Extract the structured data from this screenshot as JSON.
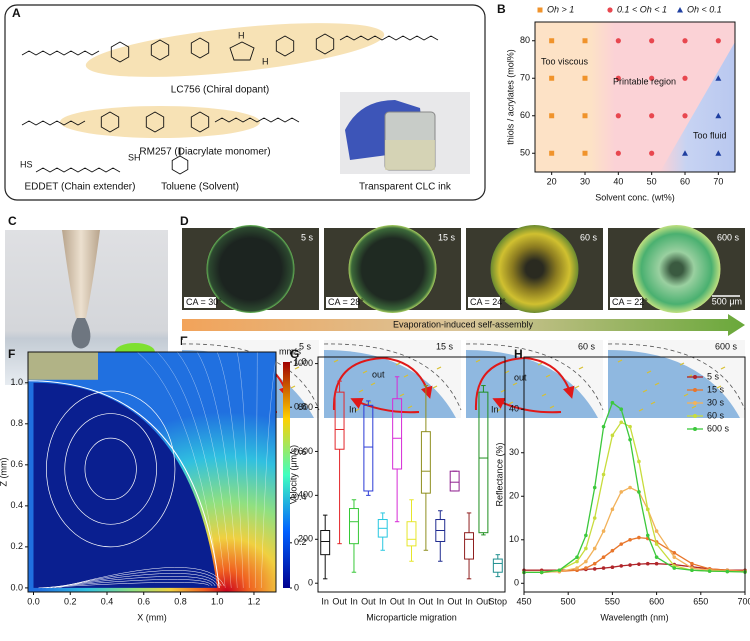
{
  "figure": {
    "labels": [
      "A",
      "C",
      "D",
      "E"
    ],
    "A": {
      "compounds": [
        "LC756 (Chiral dopant)",
        "RM257 (Diacrylate monomer)",
        "EDDET (Chain extender)",
        "Toluene (Solvent)",
        "Transparent CLC ink"
      ],
      "atoms": [
        "H",
        "H",
        "HS",
        "SH"
      ]
    },
    "D": {
      "times": [
        "5 s",
        "15 s",
        "60 s",
        "600 s"
      ],
      "angles": [
        "CA = 30°",
        "CA = 28°",
        "CA = 24°",
        "CA = 22°"
      ],
      "scale": "500 μm",
      "arrow": "Evaporation-induced self-assembly"
    },
    "E": {
      "times": [
        "5 s",
        "15 s",
        "60 s",
        "600 s"
      ],
      "flow": [
        "out",
        "In",
        "out",
        "In"
      ]
    }
  },
  "chart_data": [
    {
      "panel": "B",
      "type": "scatter",
      "xlabel": "Solvent conc. (wt%)",
      "ylabel": "thiols / acrylates (mol%)",
      "xlim": [
        15,
        75
      ],
      "ylim": [
        45,
        85
      ],
      "xticks": [
        20,
        30,
        40,
        50,
        60,
        70
      ],
      "yticks": [
        50,
        60,
        70,
        80
      ],
      "annotations": [
        "Too viscous",
        "Printable region",
        "Too fluid"
      ],
      "series": [
        {
          "name": "Oh > 1",
          "color": "#f0932b",
          "marker": "square",
          "x": [
            20,
            20,
            20,
            20,
            30,
            30,
            30,
            30
          ],
          "values": [
            80,
            70,
            60,
            50,
            80,
            70,
            60,
            50
          ]
        },
        {
          "name": "0.1 < Oh < 1",
          "color": "#e8474f",
          "marker": "circle",
          "x": [
            40,
            40,
            40,
            40,
            50,
            50,
            50,
            50,
            60,
            60,
            60,
            70
          ],
          "values": [
            80,
            70,
            60,
            50,
            80,
            70,
            60,
            50,
            80,
            70,
            60,
            80
          ]
        },
        {
          "name": "Oh < 0.1",
          "color": "#1f3fa0",
          "marker": "triangle",
          "x": [
            70,
            70,
            60,
            70
          ],
          "values": [
            70,
            60,
            50,
            50
          ]
        }
      ]
    },
    {
      "panel": "F",
      "type": "field",
      "xlabel": "X (mm)",
      "ylabel": "Z (mm)",
      "xlim": [
        -0.03,
        1.32
      ],
      "ylim": [
        -0.02,
        1.15
      ],
      "xticks": [
        {
          "value": 0,
          "label": "0.0"
        },
        0.2,
        0.4,
        0.6,
        0.8,
        {
          "value": 1,
          "label": "1.0"
        },
        1.2
      ],
      "yticks": [
        {
          "value": 0,
          "label": "0.0"
        },
        0.2,
        0.4,
        0.6,
        0.8,
        {
          "value": 1,
          "label": "1.0"
        }
      ],
      "colorbar": {
        "label": "mm/s",
        "lim": [
          0,
          1
        ],
        "ticks": [
          0,
          0.2,
          0.4,
          0.6,
          0.8,
          {
            "value": 1,
            "label": "1.0"
          }
        ]
      }
    },
    {
      "panel": "G",
      "type": "box",
      "xlabel": "Microparticle migration",
      "ylabel": "Velocity (μm/s)",
      "ylim": [
        -40,
        1030
      ],
      "yticks": [
        0,
        200,
        400,
        600,
        800,
        1000
      ],
      "categories": [
        "In",
        "Out",
        "In",
        "Out",
        "In",
        "Out",
        "In",
        "Out",
        "In",
        "Out",
        "In",
        "Out",
        "Stop"
      ],
      "boxes": [
        {
          "color": "#111111",
          "min": 20,
          "q1": 130,
          "median": 190,
          "q3": 240,
          "max": 310
        },
        {
          "color": "#e3262a",
          "min": 180,
          "q1": 610,
          "median": 700,
          "q3": 870,
          "max": 920
        },
        {
          "color": "#37c837",
          "min": 50,
          "q1": 180,
          "median": 280,
          "q3": 340,
          "max": 380
        },
        {
          "color": "#2b3bd6",
          "min": 400,
          "q1": 420,
          "median": 620,
          "q3": 810,
          "max": 830
        },
        {
          "color": "#28c8e0",
          "min": 150,
          "q1": 210,
          "median": 250,
          "q3": 290,
          "max": 320
        },
        {
          "color": "#d62bd6",
          "min": 280,
          "q1": 520,
          "median": 660,
          "q3": 840,
          "max": 940
        },
        {
          "color": "#e6e62b",
          "min": 100,
          "q1": 170,
          "median": 200,
          "q3": 280,
          "max": 380
        },
        {
          "color": "#8f8f1f",
          "min": 150,
          "q1": 410,
          "median": 510,
          "q3": 690,
          "max": 900
        },
        {
          "color": "#1f2b8f",
          "min": 100,
          "q1": 190,
          "median": 240,
          "q3": 290,
          "max": 330
        },
        {
          "color": "#8f1f8f",
          "min": 420,
          "q1": 420,
          "median": 460,
          "q3": 510,
          "max": 510
        },
        {
          "color": "#8f1f1f",
          "min": 20,
          "q1": 110,
          "median": 200,
          "q3": 230,
          "max": 320
        },
        {
          "color": "#1f8f1f",
          "min": 220,
          "q1": 230,
          "median": 570,
          "q3": 870,
          "max": 900
        },
        {
          "color": "#1f8f8f",
          "min": 30,
          "q1": 50,
          "median": 90,
          "q3": 110,
          "max": 130
        }
      ]
    },
    {
      "panel": "H",
      "type": "line",
      "xlabel": "Wavelength (nm)",
      "ylabel": "Reflectance (%)",
      "xlim": [
        450,
        700
      ],
      "ylim": [
        -2,
        52
      ],
      "xticks": [
        450,
        500,
        550,
        600,
        650,
        700
      ],
      "yticks": [
        0,
        10,
        20,
        30,
        40
      ],
      "x": [
        450,
        470,
        490,
        510,
        520,
        530,
        540,
        550,
        560,
        570,
        580,
        590,
        600,
        620,
        640,
        660,
        680,
        700
      ],
      "series": [
        {
          "name": "5 s",
          "color": "#b0252a",
          "values": [
            3,
            3,
            3,
            3,
            3.2,
            3.3,
            3.5,
            3.7,
            4,
            4.2,
            4.4,
            4.5,
            4.5,
            4.3,
            3.8,
            3.3,
            3,
            3
          ]
        },
        {
          "name": "15 s",
          "color": "#e8762b",
          "values": [
            2.5,
            2.5,
            2.7,
            3,
            3.5,
            4.5,
            6,
            7.5,
            9,
            10,
            10.5,
            10.3,
            9.5,
            7,
            4.5,
            3.3,
            3,
            2.8
          ]
        },
        {
          "name": "30 s",
          "color": "#f2b25a",
          "values": [
            2.5,
            2.5,
            2.7,
            3.5,
            5,
            8,
            12,
            17,
            21,
            22,
            21,
            17,
            12,
            6,
            3.5,
            3,
            2.8,
            2.7
          ]
        },
        {
          "name": "60 s",
          "color": "#c8dc3c",
          "values": [
            2.5,
            2.5,
            3,
            5,
            8,
            15,
            25,
            34,
            37,
            36,
            28,
            17,
            9,
            4,
            3,
            2.8,
            2.7,
            2.6
          ]
        },
        {
          "name": "600 s",
          "color": "#3cc83c",
          "values": [
            2.5,
            2.5,
            3,
            6,
            11,
            22,
            36,
            41.5,
            40,
            33,
            21,
            11,
            6,
            3.5,
            3,
            2.8,
            2.7,
            2.6
          ]
        }
      ]
    }
  ]
}
